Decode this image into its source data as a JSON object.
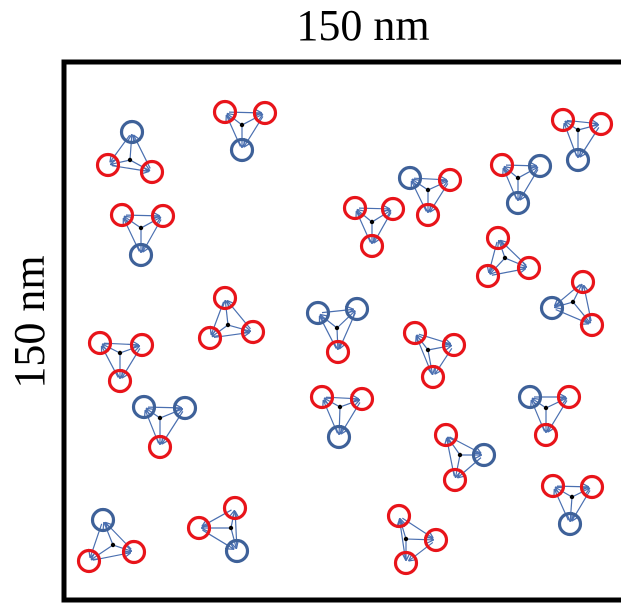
{
  "header": {
    "title": "150 nm"
  },
  "side": {
    "label": "150 nm"
  }
}
